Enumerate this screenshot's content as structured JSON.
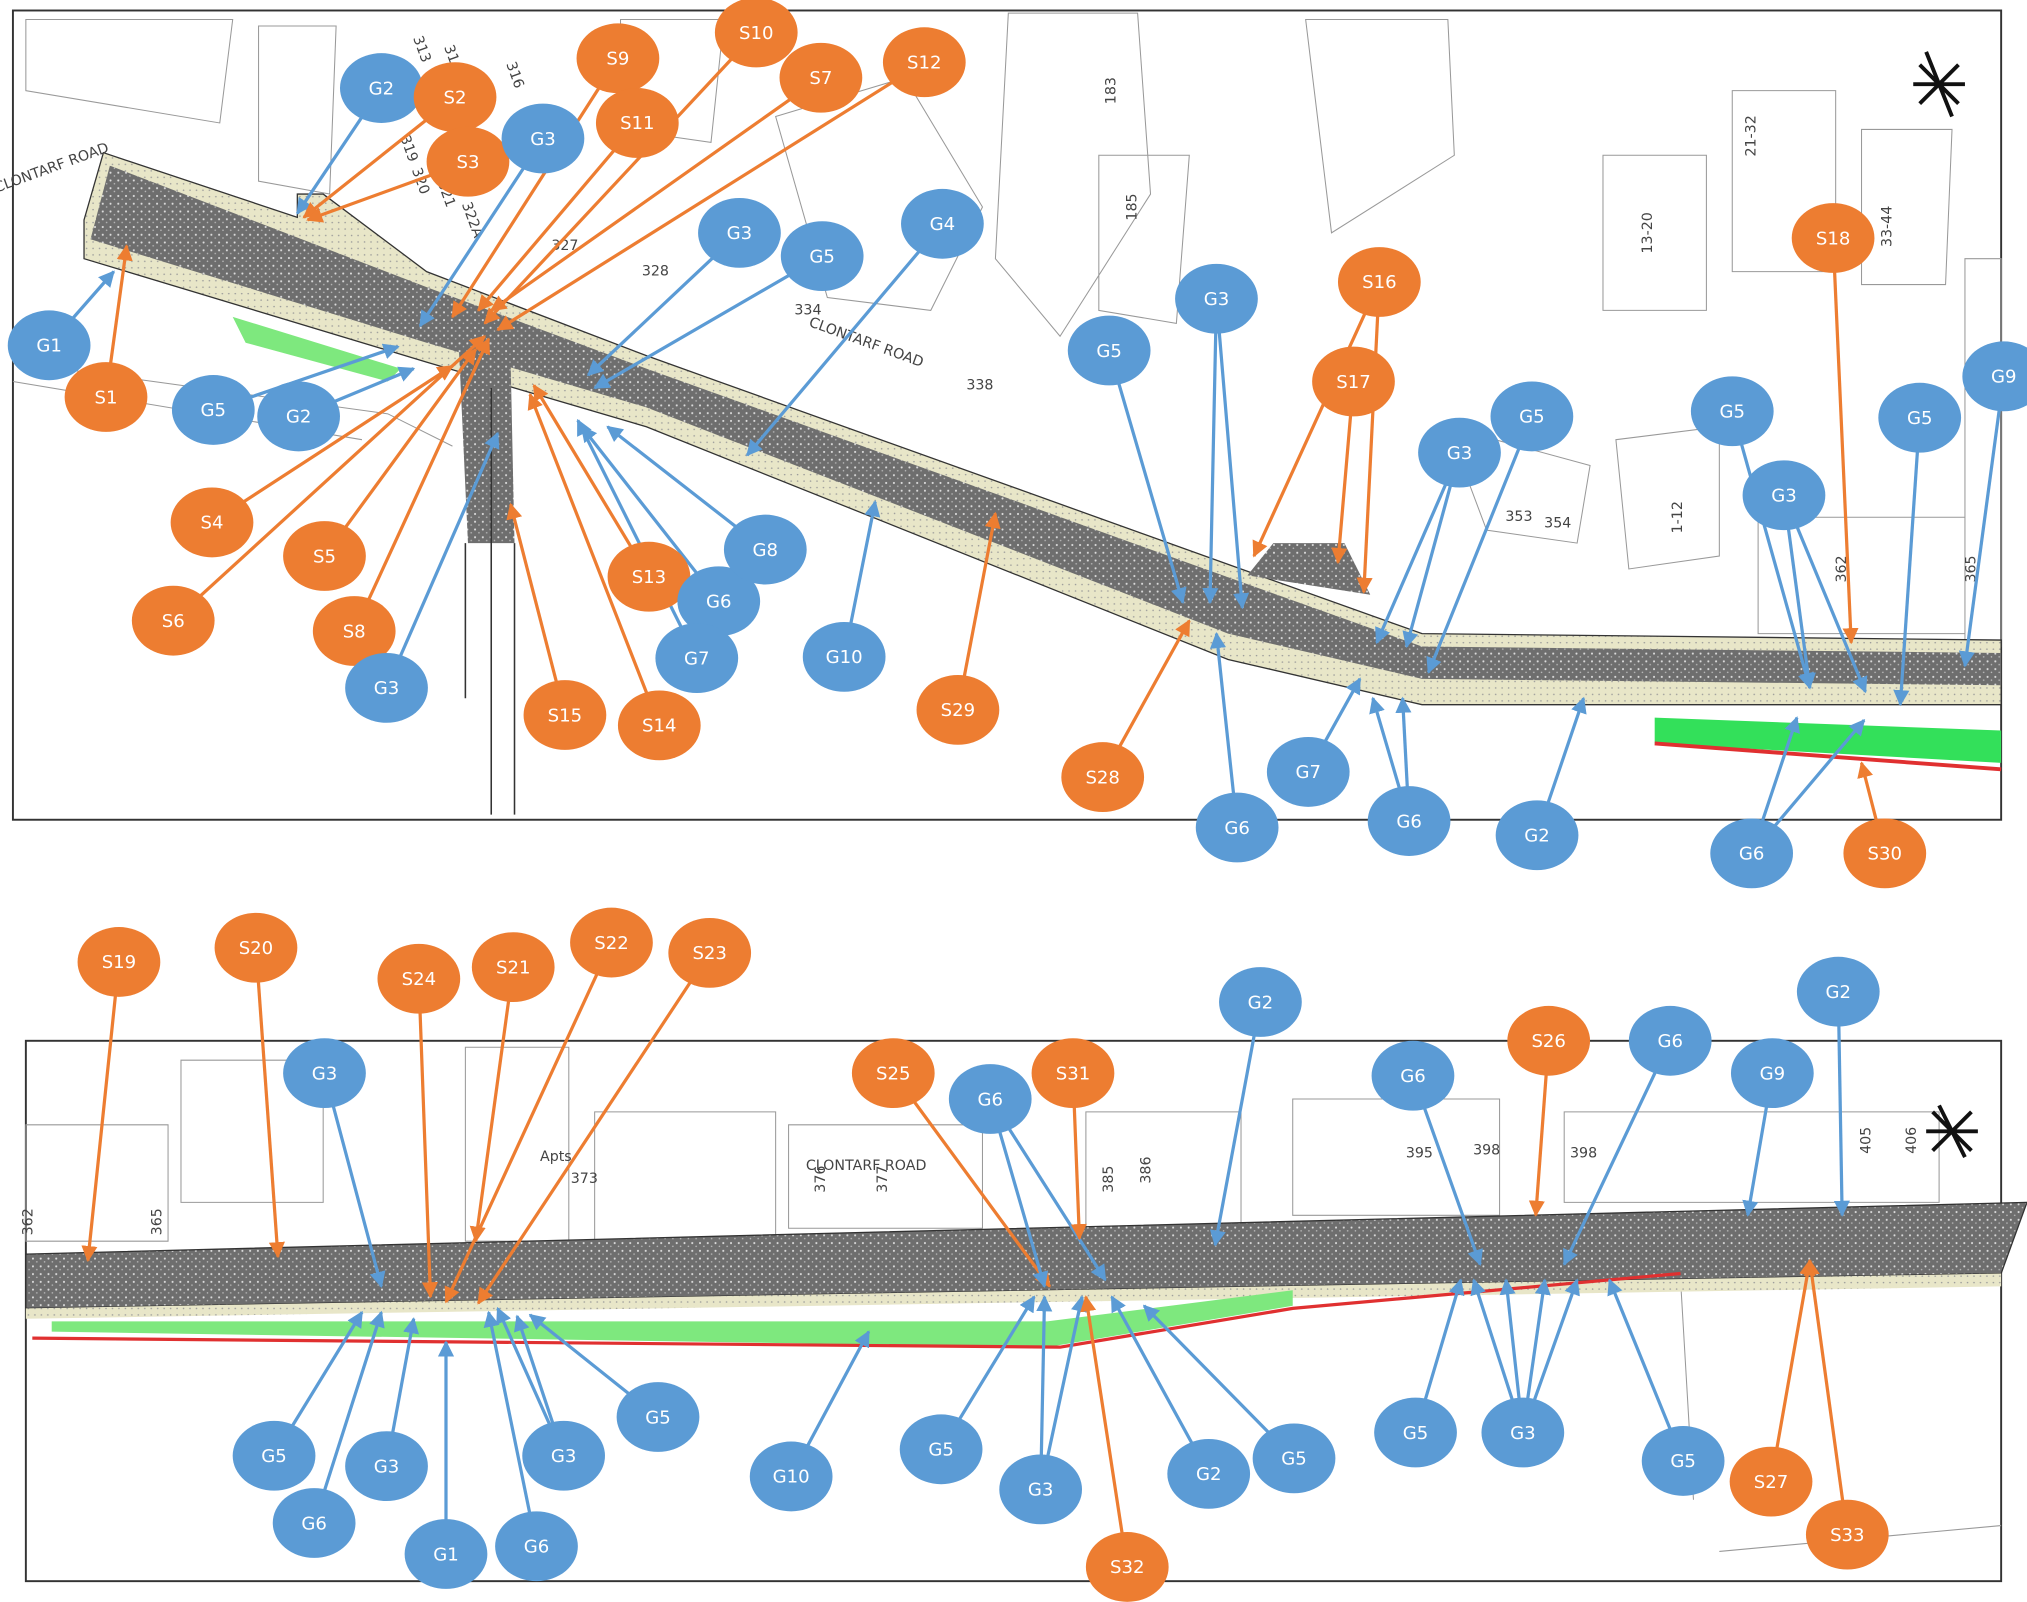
{
  "top_plan": {
    "markers": [
      "G2",
      "S2",
      "S3",
      "G3",
      "S9",
      "S10",
      "S11",
      "S7",
      "S12",
      "G3",
      "G5",
      "G4",
      "G1",
      "S1",
      "G5",
      "G2",
      "S4",
      "S5",
      "S6",
      "S8",
      "G3",
      "S15",
      "S14",
      "S13",
      "G6",
      "G7",
      "G8",
      "G10",
      "S29",
      "G5",
      "G3",
      "S16",
      "S17",
      "S28",
      "G6",
      "G3",
      "G5",
      "G7",
      "G6",
      "G2",
      "G5",
      "G3",
      "S18",
      "G5",
      "G9",
      "G6",
      "S30"
    ],
    "labels": [
      "CLONTARF ROAD",
      "313",
      "314",
      "316",
      "319",
      "320",
      "321",
      "322A",
      "327",
      "328",
      "334",
      "338",
      "185",
      "183",
      "13-20",
      "21-32",
      "33-44",
      "353",
      "354",
      "1-12",
      "362",
      "365",
      "CLONTARF ROAD"
    ]
  },
  "bottom_plan": {
    "markers": [
      "S19",
      "S20",
      "S24",
      "S21",
      "S22",
      "S23",
      "G3",
      "G5",
      "G6",
      "G3",
      "G1",
      "G6",
      "G3",
      "G5",
      "G10",
      "S25",
      "G6",
      "S31",
      "G5",
      "G3",
      "S32",
      "G2",
      "G5",
      "G2",
      "G6",
      "S26",
      "G6",
      "G9",
      "G2",
      "G5",
      "G3",
      "G5",
      "S27",
      "S33"
    ],
    "labels": [
      "362",
      "365",
      "Apts",
      "373",
      "376",
      "377",
      "385",
      "386",
      "395",
      "398",
      "398",
      "405",
      "406",
      "CLONTARF ROAD"
    ]
  }
}
